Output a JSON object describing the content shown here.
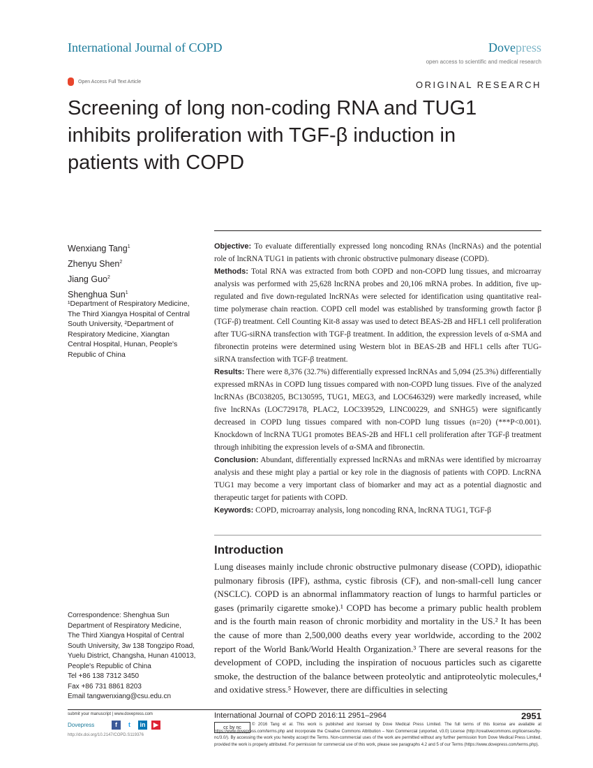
{
  "header": {
    "journal": "International Journal of COPD",
    "publisher_a": "Dove",
    "publisher_b": "press",
    "tagline": "open access to scientific and medical research",
    "open_access": "Open Access Full Text Article",
    "article_type": "ORIGINAL RESEARCH"
  },
  "title": "Screening of long non-coding RNA and TUG1 inhibits proliferation with TGF-β induction in patients with COPD",
  "authors": [
    {
      "name": "Wenxiang Tang",
      "sup": "1"
    },
    {
      "name": "Zhenyu Shen",
      "sup": "2"
    },
    {
      "name": "Jiang Guo",
      "sup": "2"
    },
    {
      "name": "Shenghua Sun",
      "sup": "1"
    }
  ],
  "affiliations": "¹Department of Respiratory Medicine, The Third Xiangya Hospital of Central South University, ²Department of Respiratory Medicine, Xiangtan Central Hospital, Hunan, People's Republic of China",
  "correspondence": [
    "Correspondence: Shenghua Sun",
    "Department of Respiratory Medicine,",
    "The Third Xiangya Hospital of Central",
    "South University, 3w 138 Tongzipo Road,",
    "Yuelu District, Changsha, Hunan 410013,",
    "People's Republic of China",
    "Tel +86 138 7312 3450",
    "Fax +86 731 8861 8203",
    "Email tangwenxiang@csu.edu.cn"
  ],
  "abstract": [
    {
      "label": "Objective:",
      "text": " To evaluate differentially expressed long noncoding RNAs (lncRNAs) and the potential role of lncRNA TUG1 in patients with chronic obstructive pulmonary disease (COPD)."
    },
    {
      "label": "Methods:",
      "text": " Total RNA was extracted from both COPD and non-COPD lung tissues, and microarray analysis was performed with 25,628 lncRNA probes and 20,106 mRNA probes. In addition, five up-regulated and five down-regulated lncRNAs were selected for identification using quantitative real-time polymerase chain reaction. COPD cell model was established by transforming growth factor β (TGF-β) treatment. Cell Counting Kit-8 assay was used to detect BEAS-2B and HFL1 cell proliferation after TUG-siRNA transfection with TGF-β treatment. In addition, the expression levels of α-SMA and fibronectin proteins were determined using Western blot in BEAS-2B and HFL1 cells after TUG-siRNA transfection with TGF-β treatment."
    },
    {
      "label": "Results:",
      "text": " There were 8,376 (32.7%) differentially expressed lncRNAs and 5,094 (25.3%) differentially expressed mRNAs in COPD lung tissues compared with non-COPD lung tissues. Five of the analyzed lncRNAs (BC038205, BC130595, TUG1, MEG3, and LOC646329) were markedly increased, while five lncRNAs (LOC729178, PLAC2, LOC339529, LINC00229, and SNHG5) were significantly decreased in COPD lung tissues compared with non-COPD lung tissues (n=20) (***P<0.001). Knockdown of lncRNA TUG1 promotes BEAS-2B and HFL1 cell proliferation after TGF-β treatment through inhibiting the expression levels of α-SMA and fibronectin."
    },
    {
      "label": "Conclusion:",
      "text": " Abundant, differentially expressed lncRNAs and mRNAs were identified by microarray analysis and these might play a partial or key role in the diagnosis of patients with COPD. LncRNA TUG1 may become a very important class of biomarker and may act as a potential diagnostic and therapeutic target for patients with COPD."
    },
    {
      "label": "Keywords:",
      "text": " COPD, microarray analysis, long noncoding RNA, lncRNA TUG1, TGF-β"
    }
  ],
  "introduction": {
    "heading": "Introduction",
    "text": "Lung diseases mainly include chronic obstructive pulmonary disease (COPD), idiopathic pulmonary fibrosis (IPF), asthma, cystic fibrosis (CF), and non-small-cell lung cancer (NSCLC). COPD is an abnormal inflammatory reaction of lungs to harmful particles or gases (primarily cigarette smoke).¹ COPD has become a primary public health problem and is the fourth main reason of chronic morbidity and mortality in the US.² It has been the cause of more than 2,500,000 deaths every year worldwide, according to the 2002 report of the World Bank/World Health Organization.³ There are several reasons for the development of COPD, including the inspiration of nocuous particles such as cigarette smoke, the destruction of the balance between proteolytic and antiproteolytic molecules,⁴ and oxidative stress.⁵ However, there are difficulties in selecting"
  },
  "footer": {
    "submit": "submit your manuscript | www.dovepress.com",
    "dove": "Dovepress",
    "doi": "http://dx.doi.org/10.2147/COPD.S119376",
    "journal_citation": "International Journal of COPD 2016:11 2951–2964",
    "page": "2951",
    "cc": "cc by nc",
    "license": "© 2016 Tang et al. This work is published and licensed by Dove Medical Press Limited. The full terms of this license are available at https://www.dovepress.com/terms.php and incorporate the Creative Commons Attribution – Non Commercial (unported, v3.0) License (http://creativecommons.org/licenses/by-nc/3.0/). By accessing the work you hereby accept the Terms. Non-commercial uses of the work are permitted without any further permission from Dove Medical Press Limited, provided the work is properly attributed. For permission for commercial use of this work, please see paragraphs 4.2 and 5 of our Terms (https://www.dovepress.com/terms.php).",
    "social": [
      "f",
      "t",
      "in",
      "▶"
    ]
  },
  "colors": {
    "brand": "#1a7a9a",
    "oa_icon": "#e8452c"
  }
}
